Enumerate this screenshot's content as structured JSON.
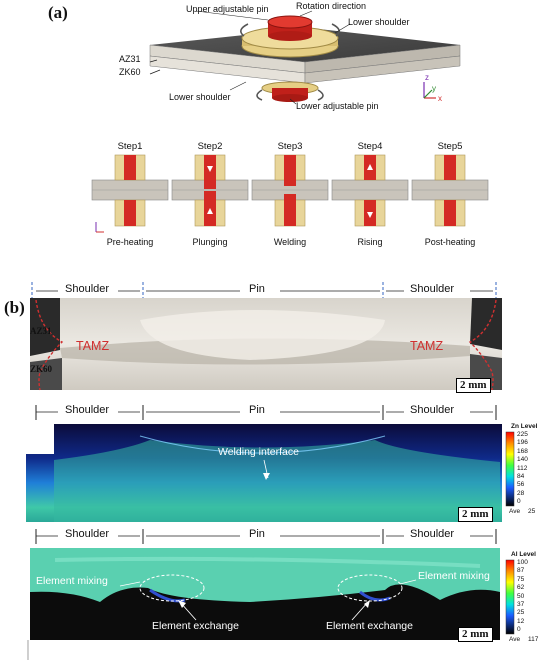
{
  "panel_a": {
    "label": "(a)",
    "callouts": {
      "upper_pin": "Upper adjustable pin",
      "rotation": "Rotation direction",
      "lower_shoulder_top": "Lower shoulder",
      "az31": "AZ31",
      "zk60": "ZK60",
      "lower_shoulder_bottom": "Lower shoulder",
      "lower_pin": "Lower adjustable pin"
    },
    "axes": {
      "z": "z",
      "y": "y",
      "x": "x"
    },
    "steps": [
      {
        "title": "Step1",
        "caption": "Pre-heating"
      },
      {
        "title": "Step2",
        "caption": "Plunging"
      },
      {
        "title": "Step3",
        "caption": "Welding"
      },
      {
        "title": "Step4",
        "caption": "Rising"
      },
      {
        "title": "Step5",
        "caption": "Post-heating"
      }
    ]
  },
  "panel_b": {
    "label": "(b)",
    "zones": {
      "shoulder_left": "Shoulder",
      "pin": "Pin",
      "shoulder_right": "Shoulder"
    },
    "macro": {
      "az31": "AZ31",
      "zk60": "ZK60",
      "tamz_left": "TAMZ",
      "tamz_right": "TAMZ",
      "scale": "2 mm"
    },
    "zn_map": {
      "annotation": "Welding interface",
      "scale": "2 mm",
      "legend_element": "Zn",
      "legend_word": "Level",
      "levels": [
        "225",
        "196",
        "168",
        "140",
        "112",
        "84",
        "56",
        "28",
        "0"
      ],
      "ave_label": "Ave",
      "ave_value": "25"
    },
    "al_map": {
      "mix_left": "Element mixing",
      "mix_right": "Element mixing",
      "exch_left": "Element exchange",
      "exch_right": "Element exchange",
      "scale": "2 mm",
      "legend_element": "Al",
      "legend_word": "Level",
      "levels": [
        "100",
        "87",
        "75",
        "62",
        "50",
        "37",
        "25",
        "12",
        "0"
      ],
      "ave_label": "Ave",
      "ave_value": "117"
    }
  },
  "colors": {
    "pin_red": "#d42a24",
    "shoulder_tan": "#e8d59a",
    "plate_gray": "#c9c4bb",
    "dim_blue": "#3466c2",
    "tamz_red": "#d03030",
    "map_dark": "#0b0b3a"
  }
}
